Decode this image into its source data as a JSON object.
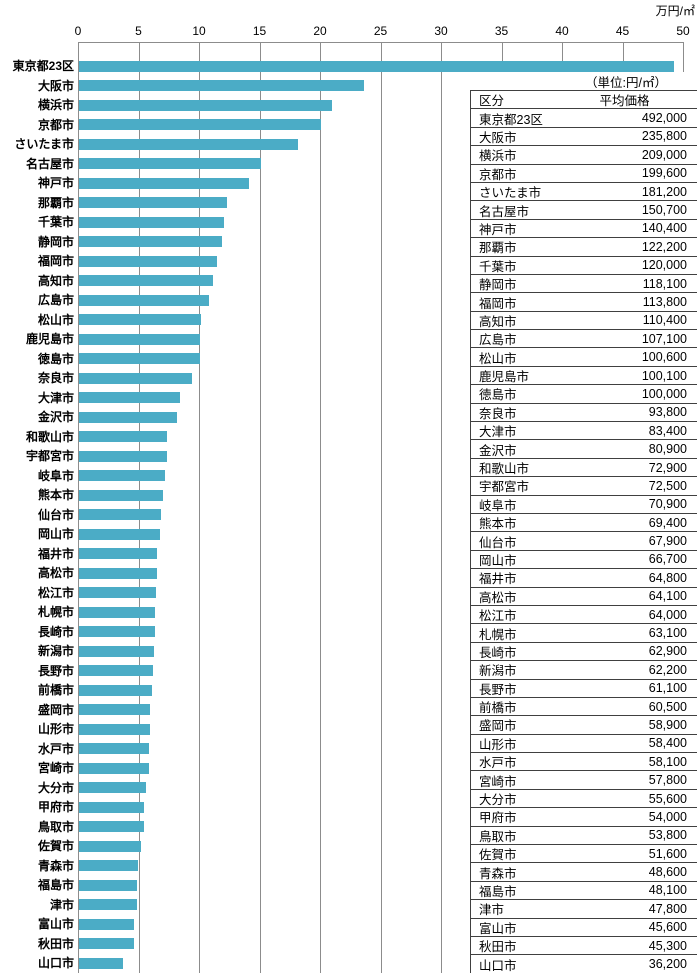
{
  "chart": {
    "unit_label": "万円/㎡",
    "bar_color": "#4BACC6",
    "gridline_color": "#8c8c8c"
  },
  "table": {
    "unit_note": "（単位:円/㎡）",
    "col_category": "区分",
    "col_price": "平均価格"
  },
  "chart_data": {
    "type": "bar",
    "orientation": "horizontal",
    "title": "",
    "xlabel": "万円/㎡",
    "xlim": [
      0,
      50
    ],
    "x_ticks": [
      0,
      5,
      10,
      15,
      20,
      25,
      30,
      35,
      40,
      45,
      50
    ],
    "grid": true,
    "value_unit": "円/㎡",
    "bar_value_unit": "万円/㎡",
    "note": "bar length = value / 10000 (万円/㎡)",
    "categories": [
      "東京都23区",
      "大阪市",
      "横浜市",
      "京都市",
      "さいたま市",
      "名古屋市",
      "神戸市",
      "那覇市",
      "千葉市",
      "静岡市",
      "福岡市",
      "高知市",
      "広島市",
      "松山市",
      "鹿児島市",
      "徳島市",
      "奈良市",
      "大津市",
      "金沢市",
      "和歌山市",
      "宇都宮市",
      "岐阜市",
      "熊本市",
      "仙台市",
      "岡山市",
      "福井市",
      "高松市",
      "松江市",
      "札幌市",
      "長崎市",
      "新潟市",
      "長野市",
      "前橋市",
      "盛岡市",
      "山形市",
      "水戸市",
      "宮崎市",
      "大分市",
      "甲府市",
      "鳥取市",
      "佐賀市",
      "青森市",
      "福島市",
      "津市",
      "富山市",
      "秋田市",
      "山口市"
    ],
    "values": [
      492000,
      235800,
      209000,
      199600,
      181200,
      150700,
      140400,
      122200,
      120000,
      118100,
      113800,
      110400,
      107100,
      100600,
      100100,
      100000,
      93800,
      83400,
      80900,
      72900,
      72500,
      70900,
      69400,
      67900,
      66700,
      64800,
      64100,
      64000,
      63100,
      62900,
      62200,
      61100,
      60500,
      58900,
      58400,
      58100,
      57800,
      55600,
      54000,
      53800,
      51600,
      48600,
      48100,
      47800,
      45600,
      45300,
      36200
    ]
  }
}
